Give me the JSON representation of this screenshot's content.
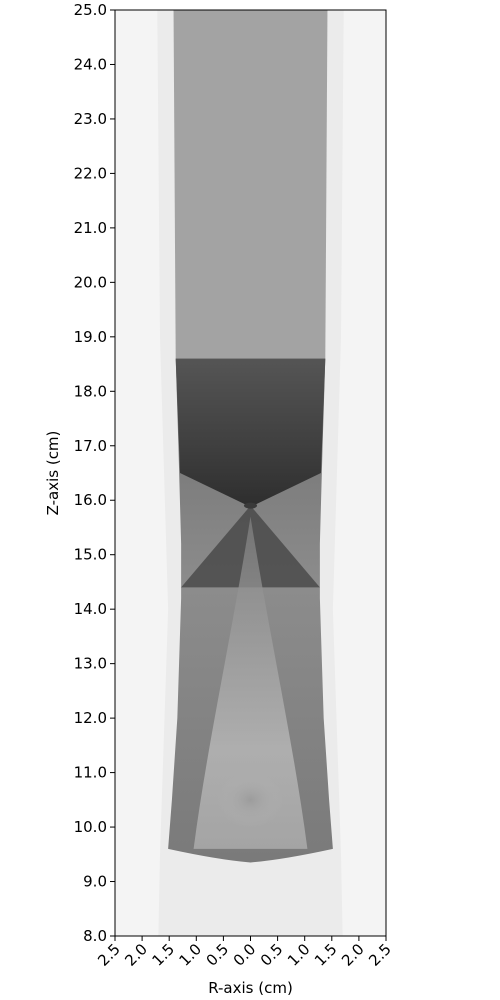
{
  "chart_data": {
    "type": "heatmap",
    "colormap": "grayscale (white = low, dark = high)",
    "xlabel": "R-axis (cm)",
    "ylabel": "Z-axis (cm)",
    "xlim": [
      -2.5,
      2.5
    ],
    "ylim": [
      8.0,
      25.0
    ],
    "x_ticks": [
      -2.5,
      -2.0,
      -1.5,
      -1.0,
      -0.5,
      0.0,
      0.5,
      1.0,
      1.5,
      2.0,
      2.5
    ],
    "x_tick_labels": [
      "2.5",
      "2.0",
      "1.5",
      "1.0",
      "0.5",
      "0.0",
      "0.5",
      "1.0",
      "1.5",
      "2.0",
      "2.5"
    ],
    "y_ticks": [
      8.0,
      9.0,
      10.0,
      11.0,
      12.0,
      13.0,
      14.0,
      15.0,
      16.0,
      17.0,
      18.0,
      19.0,
      20.0,
      21.0,
      22.0,
      23.0,
      24.0,
      25.0
    ],
    "y_tick_labels": [
      "8.0",
      "9.0",
      "10.0",
      "11.0",
      "12.0",
      "13.0",
      "14.0",
      "15.0",
      "16.0",
      "17.0",
      "18.0",
      "19.0",
      "20.0",
      "21.0",
      "22.0",
      "23.0",
      "24.0",
      "25.0"
    ],
    "regions": {
      "outer_background": {
        "r_from": 1.75,
        "z": [
          8.0,
          25.0
        ],
        "gray": "#f4f4f4"
      },
      "outer_band": {
        "r_outer": 1.72,
        "z": [
          8.0,
          25.0
        ],
        "gray": "#ebebeb"
      },
      "upper_core": {
        "r_outer": 1.42,
        "z": [
          18.6,
          25.0
        ],
        "gray": "#a3a3a3"
      },
      "mid_core_boundary": [
        [
          1.38,
          18.6
        ],
        [
          1.33,
          17.0
        ],
        [
          1.28,
          15.2
        ],
        [
          1.28,
          14.2
        ],
        [
          1.35,
          12.0
        ],
        [
          1.45,
          10.5
        ],
        [
          1.52,
          9.6
        ]
      ],
      "lower_bottom_edge": [
        [
          1.52,
          9.6
        ],
        [
          0.0,
          9.35
        ]
      ],
      "cone_vertex": {
        "r": 0.0,
        "z": 15.9
      },
      "upper_cone_base_z": 18.6,
      "lower_cone_base_z": 14.4,
      "inner_core_gray": "#bdbdbd",
      "shock_gray": "#3a3a3a"
    }
  }
}
